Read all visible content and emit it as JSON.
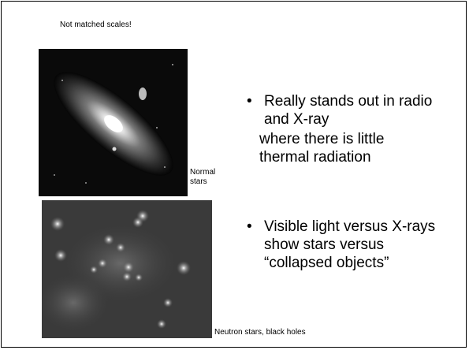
{
  "slide": {
    "note": "Not matched scales!",
    "image_1_caption": "Normal stars",
    "image_2_caption": "Neutron stars, black holes",
    "bullets": [
      {
        "text": "Really stands out in radio and X-ray",
        "continuation": "where there is little thermal radiation"
      },
      {
        "text": "Visible light versus X-rays show stars versus “collapsed objects”"
      }
    ]
  }
}
